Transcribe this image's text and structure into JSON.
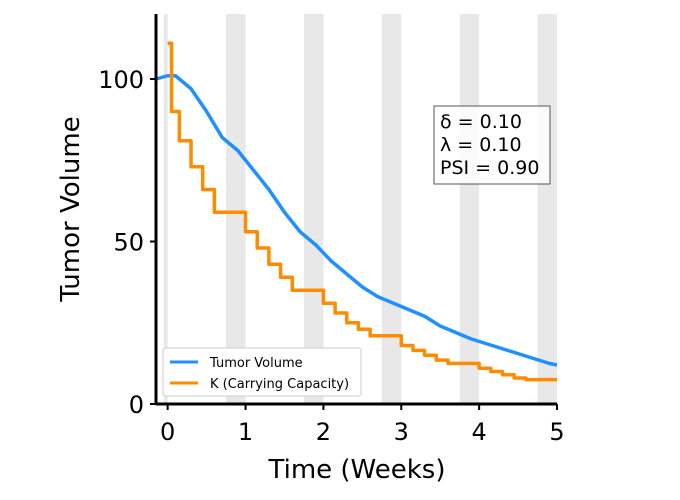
{
  "chart_data": {
    "type": "line",
    "xlabel": "Time (Weeks)",
    "ylabel": "Tumor Volume",
    "xlim": [
      -0.15,
      5
    ],
    "ylim": [
      0,
      120
    ],
    "x_ticks": [
      "0",
      "1",
      "2",
      "3",
      "4",
      "5"
    ],
    "y_ticks": [
      "0",
      "50",
      "100"
    ],
    "treatment_bands": [
      [
        -0.05,
        0.0
      ],
      [
        0.75,
        1.0
      ],
      [
        1.75,
        2.0
      ],
      [
        2.75,
        3.0
      ],
      [
        3.75,
        4.0
      ],
      [
        4.75,
        5.0
      ]
    ],
    "band_color": "#e8e8e8",
    "series": [
      {
        "name": "Tumor Volume",
        "color": "#1e90ff",
        "style": "line",
        "x": [
          -0.15,
          0.0,
          0.1,
          0.3,
          0.5,
          0.7,
          0.9,
          1.1,
          1.3,
          1.5,
          1.7,
          1.9,
          2.1,
          2.3,
          2.5,
          2.7,
          2.9,
          3.1,
          3.3,
          3.5,
          3.7,
          3.9,
          4.1,
          4.3,
          4.5,
          4.7,
          4.9,
          5.0
        ],
        "y": [
          100,
          101,
          101,
          97,
          90,
          82,
          78,
          72,
          66,
          59,
          53,
          49,
          44,
          40,
          36,
          33,
          31,
          29,
          27,
          24,
          22,
          20,
          18.5,
          17,
          15.5,
          14,
          12.5,
          12
        ]
      },
      {
        "name": "K (Carrying Capacity)",
        "color": "#ff8c00",
        "style": "step",
        "x": [
          0.0,
          0.05,
          0.15,
          0.3,
          0.45,
          0.6,
          1.0,
          1.15,
          1.3,
          1.45,
          1.6,
          2.0,
          2.15,
          2.3,
          2.45,
          2.6,
          3.0,
          3.15,
          3.3,
          3.45,
          3.6,
          4.0,
          4.15,
          4.3,
          4.45,
          4.6,
          5.0
        ],
        "y": [
          111,
          90,
          81,
          73,
          66,
          59,
          53,
          48,
          43,
          39,
          35,
          31,
          28,
          25,
          23,
          21,
          18,
          16.5,
          15,
          13.5,
          12.5,
          11,
          10,
          9,
          8,
          7.5,
          7.5
        ]
      }
    ],
    "legend_position": "lower-left",
    "annotation_lines": [
      "δ = 0.10",
      "λ = 0.10",
      "PSI = 0.90"
    ]
  }
}
